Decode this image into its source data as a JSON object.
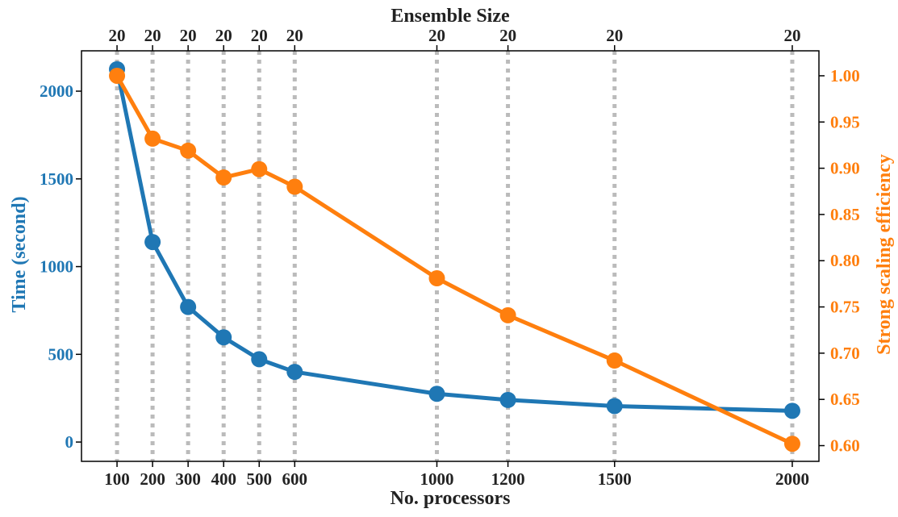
{
  "chart_data": {
    "type": "line",
    "x": [
      100,
      200,
      300,
      400,
      500,
      600,
      1000,
      1200,
      1500,
      2000
    ],
    "series": [
      {
        "axis": "left",
        "color": "#1f77b4",
        "values": [
          2125,
          1140,
          770,
          597,
          472,
          400,
          275,
          240,
          205,
          178
        ]
      },
      {
        "axis": "right",
        "color": "#ff7f0e",
        "values": [
          1.0,
          0.932,
          0.919,
          0.89,
          0.899,
          0.88,
          0.781,
          0.741,
          0.692,
          0.602
        ]
      }
    ],
    "xlabel": "No. processors",
    "ylabel_left": "Time (second)",
    "ylabel_right": "Strong scaling efficiency",
    "top_axis_label": "Ensemble Size",
    "top_tick_labels": [
      "20",
      "20",
      "20",
      "20",
      "20",
      "20",
      "20",
      "20",
      "20",
      "20"
    ],
    "x_tick_labels": [
      "100",
      "200",
      "300",
      "400",
      "500",
      "600",
      "1000",
      "1200",
      "1500",
      "2000"
    ],
    "xlim": [
      0,
      2075
    ],
    "ylim_left": [
      -110,
      2230
    ],
    "yticks_left": [
      "0",
      "500",
      "1000",
      "1500",
      "2000"
    ],
    "ylim_right": [
      0.583,
      1.027
    ],
    "yticks_right": [
      "0.60",
      "0.65",
      "0.70",
      "0.75",
      "0.80",
      "0.85",
      "0.90",
      "0.95",
      "1.00"
    ],
    "vertical_grid": true,
    "grid_color": "#bbbbbb",
    "left_axis_color": "#1f77b4",
    "right_axis_color": "#ff7f0e",
    "legend": "none"
  }
}
